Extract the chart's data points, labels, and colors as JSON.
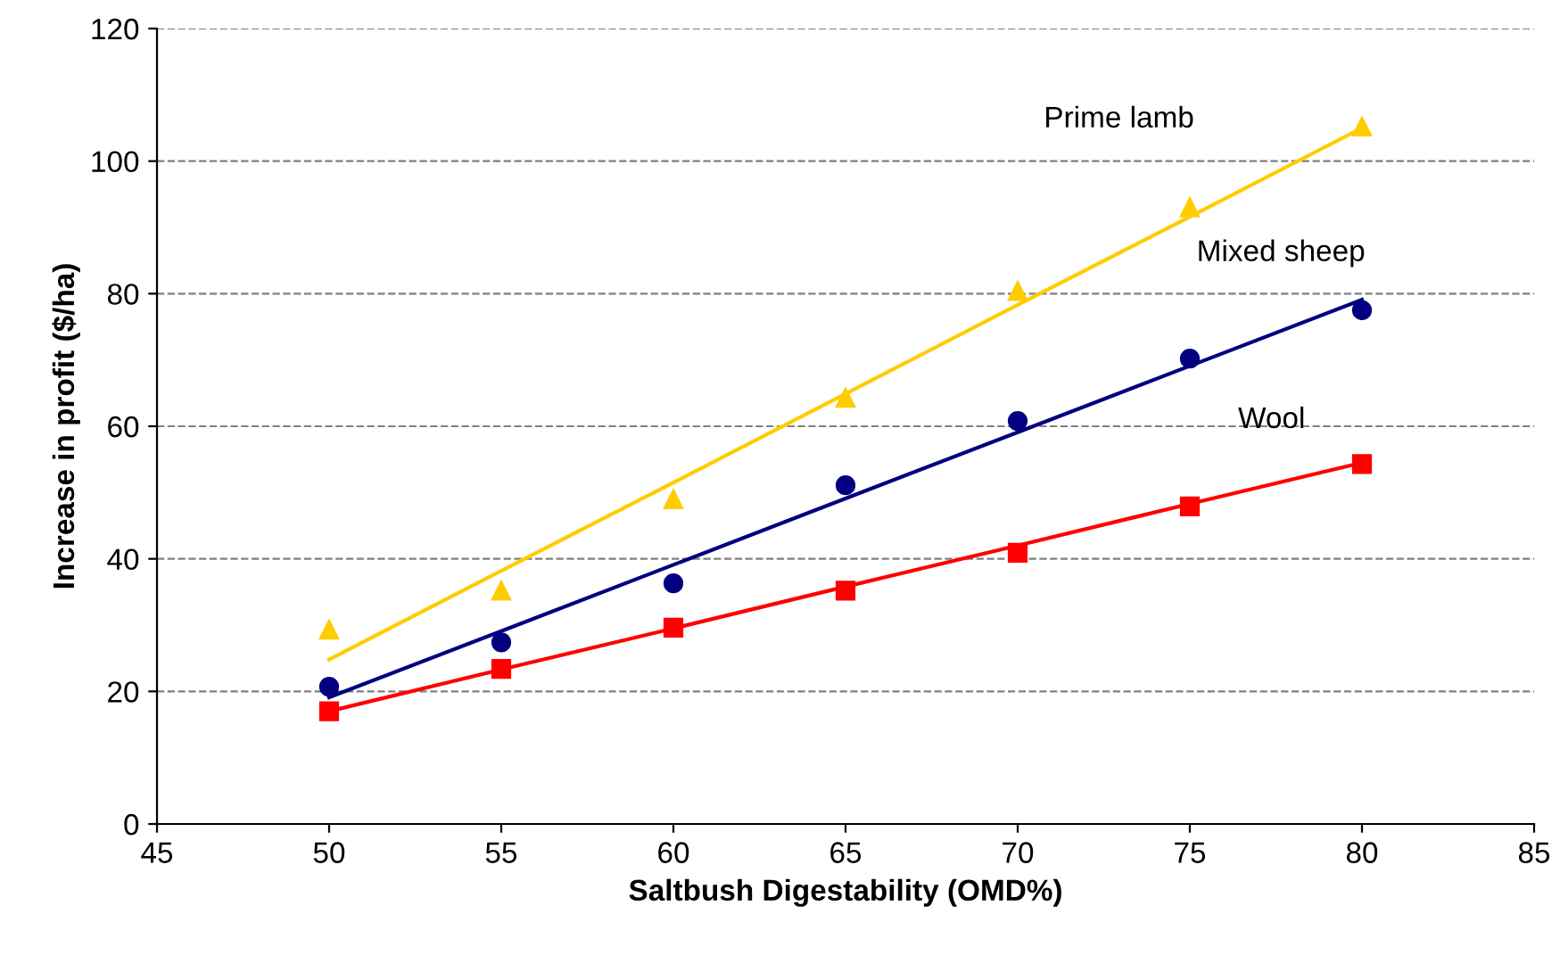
{
  "chart_data": {
    "type": "scatter",
    "xlabel": "Saltbush Digestability (OMD%)",
    "ylabel": "Increase in profit ($/ha)",
    "x": [
      50,
      55,
      60,
      65,
      70,
      75,
      80
    ],
    "series": [
      {
        "color": "#ffcc00",
        "marker": "triangle",
        "values": [
          29.3,
          35.2,
          49,
          64.3,
          80.4,
          93,
          105.2
        ]
      },
      {
        "color": "#000080",
        "marker": "circle",
        "values": [
          20.7,
          27.4,
          36.3,
          51.1,
          60.8,
          70.2,
          77.5
        ]
      },
      {
        "color": "#ff0000",
        "marker": "square",
        "values": [
          17,
          23.4,
          29.6,
          35.2,
          40.9,
          47.9,
          54.3
        ]
      },
      {
        "type": "line",
        "color": "#ffcc00",
        "values": [
          24.8,
          38.2,
          51.5,
          64.9,
          78.3,
          91.6,
          105
        ]
      },
      {
        "type": "line",
        "color": "#000080",
        "values": [
          19.1,
          29.1,
          39.1,
          49.1,
          59.1,
          69.1,
          79.1
        ]
      },
      {
        "type": "line",
        "color": "#ff0000",
        "values": [
          17,
          23.3,
          29.5,
          35.8,
          42,
          48.3,
          54.5
        ]
      }
    ],
    "annotations": [
      "Prime lamb",
      "Mixed sheep",
      "Wool"
    ],
    "xlim": [
      45,
      85
    ],
    "xticks": [
      45,
      50,
      55,
      60,
      65,
      70,
      75,
      80,
      85
    ],
    "ylim": [
      0,
      120
    ],
    "yticks": [
      0,
      20,
      40,
      60,
      80,
      100,
      120
    ],
    "grid": "y",
    "legend": false
  }
}
